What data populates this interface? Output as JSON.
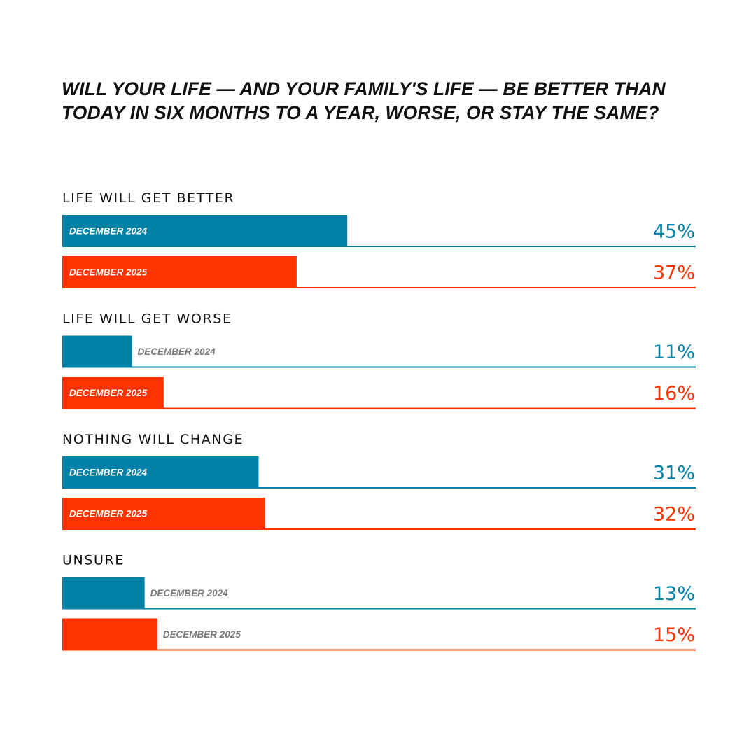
{
  "chart_data": {
    "type": "bar",
    "orientation": "horizontal",
    "title": "WILL YOUR LIFE — AND YOUR FAMILY'S LIFE — BE BETTER THAN TODAY IN SIX MONTHS TO A YEAR, WORSE, OR STAY THE SAME?",
    "categories": [
      "LIFE WILL GET BETTER",
      "LIFE WILL GET WORSE",
      "NOTHING WILL CHANGE",
      "UNSURE"
    ],
    "series": [
      {
        "name": "DECEMBER 2024",
        "color": "#0081A7",
        "values": [
          45,
          11,
          31,
          13
        ]
      },
      {
        "name": "DECEMBER 2025",
        "color": "#FF3300",
        "values": [
          37,
          16,
          32,
          15
        ]
      }
    ],
    "value_suffix": "%",
    "xlim": [
      0,
      100
    ],
    "grid": false,
    "legend": "none"
  }
}
